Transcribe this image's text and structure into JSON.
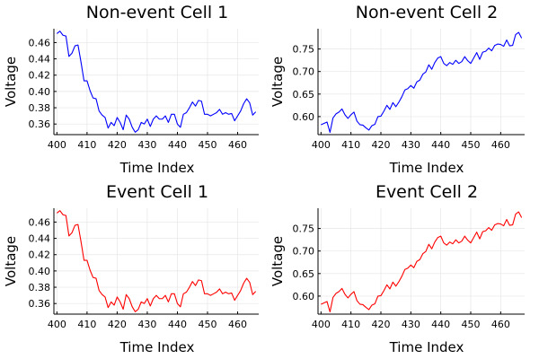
{
  "chart_data": [
    {
      "type": "line",
      "title": "Non-event Cell 1",
      "xlabel": "Time Index",
      "ylabel": "Voltage",
      "color": "#0000ff",
      "xlim": [
        399,
        467
      ],
      "ylim": [
        0.347,
        0.477
      ],
      "xticks": [
        400,
        410,
        420,
        430,
        440,
        450,
        460
      ],
      "yticks": [
        0.36,
        0.38,
        0.4,
        0.42,
        0.44,
        0.46
      ],
      "ytick_labels": [
        "0.36",
        "0.38",
        "0.40",
        "0.42",
        "0.44",
        "0.46"
      ],
      "grid": true,
      "x": [
        400,
        401,
        402,
        403,
        404,
        405,
        406,
        407,
        408,
        409,
        410,
        411,
        412,
        413,
        414,
        415,
        416,
        417,
        418,
        419,
        420,
        421,
        422,
        423,
        424,
        425,
        426,
        427,
        428,
        429,
        430,
        431,
        432,
        433,
        434,
        435,
        436,
        437,
        438,
        439,
        440,
        441,
        442,
        443,
        444,
        445,
        446,
        447,
        448,
        449,
        450,
        451,
        452,
        453,
        454,
        455,
        456,
        457,
        458,
        459,
        460,
        461,
        462,
        463,
        464,
        465,
        466
      ],
      "values": [
        0.471,
        0.474,
        0.469,
        0.468,
        0.443,
        0.447,
        0.456,
        0.457,
        0.436,
        0.413,
        0.413,
        0.401,
        0.392,
        0.391,
        0.376,
        0.371,
        0.368,
        0.355,
        0.362,
        0.358,
        0.368,
        0.362,
        0.353,
        0.371,
        0.366,
        0.356,
        0.35,
        0.353,
        0.362,
        0.36,
        0.366,
        0.357,
        0.366,
        0.37,
        0.366,
        0.366,
        0.37,
        0.362,
        0.372,
        0.372,
        0.36,
        0.356,
        0.372,
        0.374,
        0.38,
        0.387,
        0.382,
        0.389,
        0.388,
        0.372,
        0.372,
        0.37,
        0.372,
        0.374,
        0.378,
        0.372,
        0.374,
        0.372,
        0.373,
        0.364,
        0.37,
        0.376,
        0.385,
        0.391,
        0.386,
        0.371,
        0.375
      ]
    },
    {
      "type": "line",
      "title": "Non-event Cell 2",
      "xlabel": "Time Index",
      "ylabel": "Voltage",
      "color": "#0000ff",
      "xlim": [
        399,
        468
      ],
      "ylim": [
        0.56,
        0.795
      ],
      "xticks": [
        400,
        410,
        420,
        430,
        440,
        450,
        460
      ],
      "yticks": [
        0.6,
        0.65,
        0.7,
        0.75
      ],
      "ytick_labels": [
        "0.60",
        "0.65",
        "0.70",
        "0.75"
      ],
      "grid": true,
      "x": [
        400,
        401,
        402,
        403,
        404,
        405,
        406,
        407,
        408,
        409,
        410,
        411,
        412,
        413,
        414,
        415,
        416,
        417,
        418,
        419,
        420,
        421,
        422,
        423,
        424,
        425,
        426,
        427,
        428,
        429,
        430,
        431,
        432,
        433,
        434,
        435,
        436,
        437,
        438,
        439,
        440,
        441,
        442,
        443,
        444,
        445,
        446,
        447,
        448,
        449,
        450,
        451,
        452,
        453,
        454,
        455,
        456,
        457,
        458,
        459,
        460,
        461,
        462,
        463,
        464,
        465,
        466,
        467
      ],
      "values": [
        0.582,
        0.585,
        0.588,
        0.565,
        0.597,
        0.606,
        0.61,
        0.617,
        0.604,
        0.596,
        0.604,
        0.61,
        0.59,
        0.582,
        0.581,
        0.575,
        0.57,
        0.58,
        0.583,
        0.6,
        0.601,
        0.612,
        0.625,
        0.616,
        0.631,
        0.622,
        0.632,
        0.644,
        0.659,
        0.662,
        0.669,
        0.663,
        0.677,
        0.681,
        0.694,
        0.699,
        0.715,
        0.705,
        0.72,
        0.73,
        0.733,
        0.718,
        0.713,
        0.72,
        0.716,
        0.725,
        0.718,
        0.722,
        0.733,
        0.724,
        0.718,
        0.73,
        0.742,
        0.727,
        0.743,
        0.745,
        0.752,
        0.746,
        0.758,
        0.761,
        0.76,
        0.756,
        0.77,
        0.757,
        0.758,
        0.782,
        0.787,
        0.774
      ]
    },
    {
      "type": "line",
      "title": "Event Cell 1",
      "xlabel": "Time Index",
      "ylabel": "Voltage",
      "color": "#ff0000",
      "xlim": [
        399,
        467
      ],
      "ylim": [
        0.347,
        0.477
      ],
      "xticks": [
        400,
        410,
        420,
        430,
        440,
        450,
        460
      ],
      "yticks": [
        0.36,
        0.38,
        0.4,
        0.42,
        0.44,
        0.46
      ],
      "ytick_labels": [
        "0.36",
        "0.38",
        "0.40",
        "0.42",
        "0.44",
        "0.46"
      ],
      "grid": true,
      "x": [
        400,
        401,
        402,
        403,
        404,
        405,
        406,
        407,
        408,
        409,
        410,
        411,
        412,
        413,
        414,
        415,
        416,
        417,
        418,
        419,
        420,
        421,
        422,
        423,
        424,
        425,
        426,
        427,
        428,
        429,
        430,
        431,
        432,
        433,
        434,
        435,
        436,
        437,
        438,
        439,
        440,
        441,
        442,
        443,
        444,
        445,
        446,
        447,
        448,
        449,
        450,
        451,
        452,
        453,
        454,
        455,
        456,
        457,
        458,
        459,
        460,
        461,
        462,
        463,
        464,
        465,
        466
      ],
      "values": [
        0.471,
        0.474,
        0.469,
        0.468,
        0.443,
        0.447,
        0.456,
        0.457,
        0.436,
        0.413,
        0.413,
        0.401,
        0.392,
        0.391,
        0.376,
        0.371,
        0.368,
        0.355,
        0.362,
        0.358,
        0.368,
        0.362,
        0.353,
        0.371,
        0.366,
        0.356,
        0.35,
        0.353,
        0.362,
        0.36,
        0.366,
        0.357,
        0.366,
        0.37,
        0.366,
        0.366,
        0.37,
        0.362,
        0.372,
        0.372,
        0.36,
        0.356,
        0.372,
        0.374,
        0.38,
        0.387,
        0.382,
        0.389,
        0.388,
        0.372,
        0.372,
        0.37,
        0.372,
        0.374,
        0.378,
        0.372,
        0.374,
        0.372,
        0.373,
        0.364,
        0.37,
        0.376,
        0.385,
        0.391,
        0.386,
        0.371,
        0.375
      ]
    },
    {
      "type": "line",
      "title": "Event Cell 2",
      "xlabel": "Time Index",
      "ylabel": "Voltage",
      "color": "#ff0000",
      "xlim": [
        399,
        468
      ],
      "ylim": [
        0.56,
        0.795
      ],
      "xticks": [
        400,
        410,
        420,
        430,
        440,
        450,
        460
      ],
      "yticks": [
        0.6,
        0.65,
        0.7,
        0.75
      ],
      "ytick_labels": [
        "0.60",
        "0.65",
        "0.70",
        "0.75"
      ],
      "grid": true,
      "x": [
        400,
        401,
        402,
        403,
        404,
        405,
        406,
        407,
        408,
        409,
        410,
        411,
        412,
        413,
        414,
        415,
        416,
        417,
        418,
        419,
        420,
        421,
        422,
        423,
        424,
        425,
        426,
        427,
        428,
        429,
        430,
        431,
        432,
        433,
        434,
        435,
        436,
        437,
        438,
        439,
        440,
        441,
        442,
        443,
        444,
        445,
        446,
        447,
        448,
        449,
        450,
        451,
        452,
        453,
        454,
        455,
        456,
        457,
        458,
        459,
        460,
        461,
        462,
        463,
        464,
        465,
        466,
        467
      ],
      "values": [
        0.582,
        0.585,
        0.588,
        0.565,
        0.597,
        0.606,
        0.61,
        0.617,
        0.604,
        0.596,
        0.604,
        0.61,
        0.59,
        0.582,
        0.581,
        0.575,
        0.57,
        0.58,
        0.583,
        0.6,
        0.601,
        0.612,
        0.625,
        0.616,
        0.631,
        0.622,
        0.632,
        0.644,
        0.659,
        0.662,
        0.669,
        0.663,
        0.677,
        0.681,
        0.694,
        0.699,
        0.715,
        0.705,
        0.72,
        0.73,
        0.733,
        0.718,
        0.713,
        0.72,
        0.716,
        0.725,
        0.718,
        0.722,
        0.733,
        0.724,
        0.718,
        0.73,
        0.742,
        0.727,
        0.743,
        0.745,
        0.752,
        0.746,
        0.758,
        0.761,
        0.76,
        0.756,
        0.77,
        0.757,
        0.758,
        0.782,
        0.787,
        0.774
      ]
    }
  ]
}
